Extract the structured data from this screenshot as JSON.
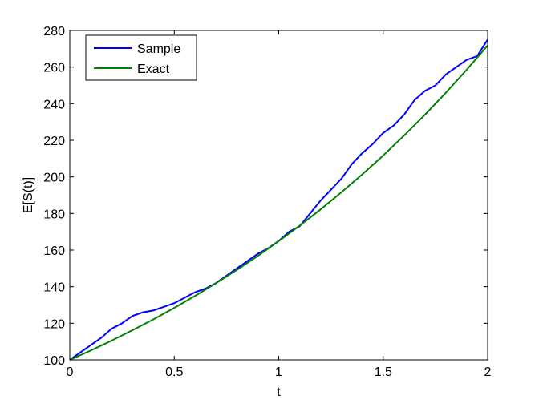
{
  "chart_data": {
    "type": "line",
    "title": "",
    "xlabel": "t",
    "ylabel": "E[S(t)]",
    "xlim": [
      0,
      2
    ],
    "ylim": [
      100,
      280
    ],
    "xticks": [
      "0",
      "0.5",
      "1",
      "1.5",
      "2"
    ],
    "yticks": [
      "100",
      "120",
      "140",
      "160",
      "180",
      "200",
      "220",
      "240",
      "260",
      "280"
    ],
    "grid": false,
    "legend_position": "top-left",
    "series": [
      {
        "name": "Sample",
        "color": "#0000ff",
        "x": [
          0,
          0.05,
          0.1,
          0.15,
          0.2,
          0.25,
          0.3,
          0.35,
          0.4,
          0.45,
          0.5,
          0.55,
          0.6,
          0.65,
          0.7,
          0.75,
          0.8,
          0.85,
          0.9,
          0.95,
          1.0,
          1.05,
          1.1,
          1.15,
          1.2,
          1.25,
          1.3,
          1.35,
          1.4,
          1.45,
          1.5,
          1.55,
          1.6,
          1.65,
          1.7,
          1.75,
          1.8,
          1.85,
          1.9,
          1.95,
          2.0
        ],
        "values": [
          100,
          104,
          108,
          112,
          117,
          120,
          124,
          126,
          127,
          129,
          131,
          134,
          137,
          139,
          142,
          146,
          150,
          154,
          158,
          161,
          165,
          170,
          173,
          180,
          187,
          193,
          199,
          207,
          213,
          218,
          224,
          228,
          234,
          242,
          247,
          250,
          256,
          260,
          264,
          266,
          275
        ]
      },
      {
        "name": "Exact",
        "color": "#007f00",
        "x": [
          0,
          0.1,
          0.2,
          0.3,
          0.4,
          0.5,
          0.6,
          0.7,
          0.8,
          0.9,
          1.0,
          1.1,
          1.2,
          1.3,
          1.4,
          1.5,
          1.6,
          1.7,
          1.8,
          1.9,
          2.0
        ],
        "values": [
          100,
          105.1,
          110.5,
          116.2,
          122.1,
          128.4,
          135.0,
          141.9,
          149.2,
          156.8,
          164.9,
          173.3,
          182.2,
          191.6,
          201.4,
          211.7,
          222.6,
          234.0,
          246.0,
          258.6,
          271.8
        ]
      }
    ]
  }
}
